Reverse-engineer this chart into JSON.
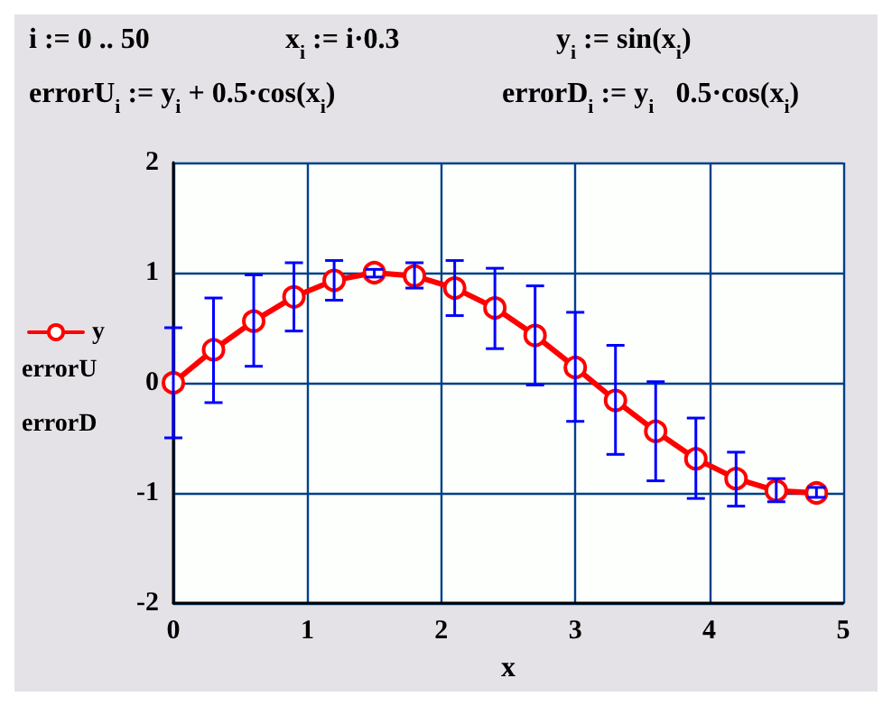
{
  "chart_data": {
    "type": "line",
    "xlabel": "x",
    "annotations": [
      "i := 0 .. 50",
      "x$_{i}$ := i·0.3",
      "y$_{i}$ := sin(x$_{i}$)",
      "errorU$_{i}$ := y$_{i}$ + 0.5·cos(x$_{i}$)",
      "errorD$_{i}$ := y$_{i}$   0.5·cos(x$_{i}$)",
      "errorU",
      "errorD"
    ],
    "x": [
      0,
      0.3,
      0.6,
      0.9,
      1.2,
      1.5,
      1.8,
      2.1,
      2.4,
      2.7,
      3.0,
      3.3,
      3.6,
      3.9,
      4.2,
      4.5,
      4.8
    ],
    "series": [
      {
        "name": "y",
        "color": "#ff0000",
        "marker": "circle",
        "values": [
          0,
          0.3,
          0.56,
          0.78,
          0.93,
          1.0,
          0.97,
          0.86,
          0.68,
          0.43,
          0.14,
          -0.16,
          -0.44,
          -0.69,
          -0.87,
          -0.98,
          -1.0
        ],
        "errors": [
          [
            -0.5,
            0.5
          ],
          [
            -0.18,
            0.77
          ],
          [
            0.15,
            0.98
          ],
          [
            0.47,
            1.09
          ],
          [
            0.75,
            1.11
          ],
          [
            0.96,
            1.03
          ],
          [
            0.86,
            1.09
          ],
          [
            0.61,
            1.11
          ],
          [
            0.31,
            1.04
          ],
          [
            -0.02,
            0.88
          ],
          [
            -0.35,
            0.64
          ],
          [
            -0.65,
            0.34
          ],
          [
            -0.89,
            0.01
          ],
          [
            -1.05,
            -0.32
          ],
          [
            -1.12,
            -0.63
          ],
          [
            -1.08,
            -0.87
          ],
          [
            -1.04,
            -0.95
          ]
        ]
      }
    ],
    "xlim": [
      0,
      5
    ],
    "xticks": [
      0,
      1,
      2,
      3,
      4,
      5
    ],
    "ylim": [
      -2,
      2
    ],
    "yticks": [
      -2,
      -1,
      0,
      1,
      2
    ],
    "grid": true,
    "legend": "left"
  }
}
